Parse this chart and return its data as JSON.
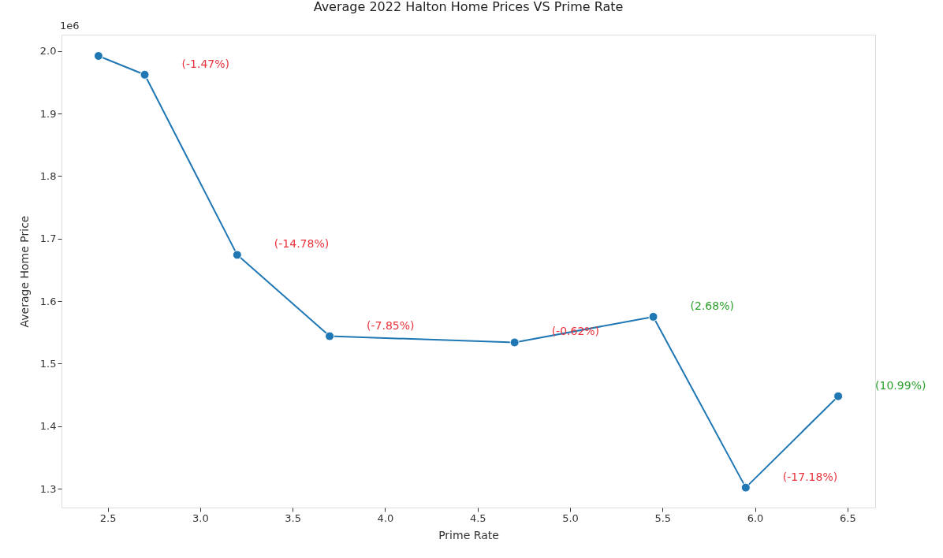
{
  "chart_data": {
    "type": "line",
    "title": "Average 2022 Halton Home Prices VS Prime Rate",
    "xlabel": "Prime Rate",
    "ylabel": "Average Home Price",
    "x": [
      2.45,
      2.7,
      3.2,
      3.7,
      4.7,
      5.45,
      5.95,
      6.45
    ],
    "series": [
      {
        "color": "#1f77b4",
        "values": [
          1.992,
          1.962,
          1.674,
          1.544,
          1.534,
          1.575,
          1.302,
          1.448
        ]
      }
    ],
    "marker": "circle",
    "line_style": "solid",
    "grid": false,
    "xlim": [
      2.25,
      6.65
    ],
    "xticks": [
      2.5,
      {
        "value": 3,
        "label": "3.0"
      },
      3.5,
      {
        "value": 4,
        "label": "4.0"
      },
      4.5,
      {
        "value": 5,
        "label": "5.0"
      },
      5.5,
      {
        "value": 6,
        "label": "6.0"
      },
      6.5
    ],
    "ylim": [
      1.27,
      2.026
    ],
    "yticks": [
      1.3,
      1.4,
      1.5,
      1.6,
      1.7,
      1.8,
      1.9,
      {
        "value": 2,
        "label": "2.0"
      }
    ],
    "annotations": [
      "1e6",
      "(-1.47%)",
      "(-14.78%)",
      "(-7.85%)",
      "(-0.62%)",
      "(2.68%)",
      "(-17.18%)",
      "(10.99%)"
    ]
  }
}
